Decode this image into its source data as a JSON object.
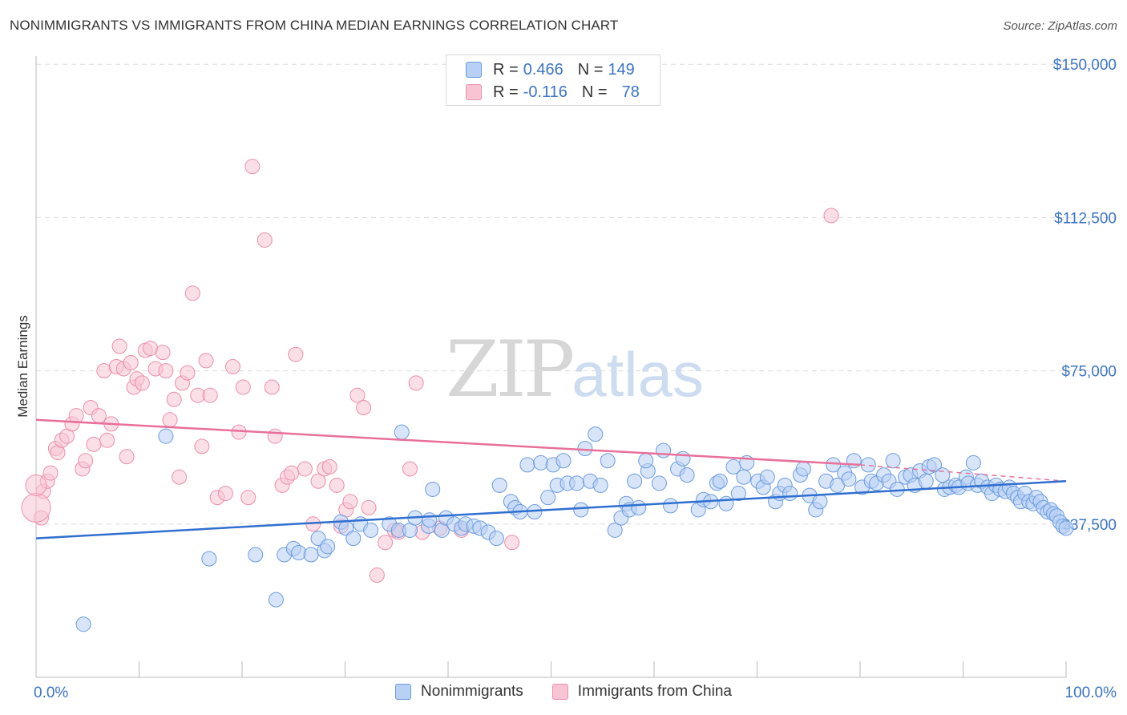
{
  "title": "NONIMMIGRANTS VS IMMIGRANTS FROM CHINA MEDIAN EARNINGS CORRELATION CHART",
  "source": "Source: ZipAtlas.com",
  "watermark": {
    "zip": "ZIP",
    "atlas": "atlas"
  },
  "legend": {
    "rows": [
      {
        "r_label": "R = ",
        "r_value": "0.466",
        "n_label": "N = ",
        "n_value": "149",
        "fill": "#b8d0f4",
        "stroke": "#6a9be0"
      },
      {
        "r_label": "R = ",
        "r_value": "-0.116",
        "n_label": "N = ",
        "n_value": "78",
        "fill": "#f8c4d4",
        "stroke": "#ec8eaa"
      }
    ]
  },
  "bottom_legend": [
    {
      "label": "Nonimmigrants",
      "fill": "#b8d0f4",
      "stroke": "#6a9be0"
    },
    {
      "label": "Immigrants from China",
      "fill": "#f8c4d4",
      "stroke": "#ec8eaa"
    }
  ],
  "chart_data": {
    "type": "scatter",
    "title": "NONIMMIGRANTS VS IMMIGRANTS FROM CHINA MEDIAN EARNINGS CORRELATION CHART",
    "xlabel": "",
    "ylabel": "Median Earnings",
    "xlim": [
      0,
      100
    ],
    "ylim": [
      0,
      152000
    ],
    "x_tick_labels": [
      "0.0%",
      "100.0%"
    ],
    "y_ticks": [
      37500,
      75000,
      112500,
      150000
    ],
    "y_tick_labels": [
      "$37,500",
      "$75,000",
      "$112,500",
      "$150,000"
    ],
    "grid": true,
    "series": [
      {
        "name": "Nonimmigrants",
        "color": "#6a9be0",
        "fill": "#b8d0f4",
        "trend": {
          "x": [
            0,
            100
          ],
          "y": [
            34000,
            48000
          ],
          "color": "#2f6fd0"
        },
        "points": [
          [
            4.6,
            13000
          ],
          [
            12.6,
            59000
          ],
          [
            16.8,
            29000
          ],
          [
            21.3,
            30000
          ],
          [
            23.3,
            19000
          ],
          [
            24.1,
            30000
          ],
          [
            25,
            31500
          ],
          [
            25.5,
            30500
          ],
          [
            26.7,
            30000
          ],
          [
            27.4,
            34000
          ],
          [
            28,
            31000
          ],
          [
            28.3,
            32000
          ],
          [
            29.6,
            38000
          ],
          [
            30.1,
            36500
          ],
          [
            30.8,
            34000
          ],
          [
            31.5,
            37500
          ],
          [
            32.5,
            36000
          ],
          [
            34.3,
            37500
          ],
          [
            35.2,
            36000
          ],
          [
            35.5,
            60000
          ],
          [
            36.3,
            36000
          ],
          [
            36.8,
            39000
          ],
          [
            38.1,
            37000
          ],
          [
            38.2,
            38500
          ],
          [
            38.5,
            46000
          ],
          [
            39.4,
            36000
          ],
          [
            39.8,
            39000
          ],
          [
            40.6,
            37500
          ],
          [
            41.3,
            36500
          ],
          [
            41.7,
            37500
          ],
          [
            42.5,
            37000
          ],
          [
            43.1,
            36500
          ],
          [
            43.9,
            35500
          ],
          [
            44.7,
            34000
          ],
          [
            45,
            47000
          ],
          [
            46.1,
            43000
          ],
          [
            46.5,
            41500
          ],
          [
            47,
            40500
          ],
          [
            47.7,
            52000
          ],
          [
            48.4,
            40500
          ],
          [
            49,
            52500
          ],
          [
            49.7,
            44000
          ],
          [
            50.2,
            52000
          ],
          [
            50.6,
            47000
          ],
          [
            51.2,
            53000
          ],
          [
            51.6,
            47500
          ],
          [
            52.5,
            47500
          ],
          [
            52.9,
            41000
          ],
          [
            53.3,
            56000
          ],
          [
            53.8,
            48000
          ],
          [
            54.3,
            59500
          ],
          [
            54.8,
            47000
          ],
          [
            55.5,
            53000
          ],
          [
            56.2,
            36000
          ],
          [
            56.8,
            39000
          ],
          [
            57.3,
            42500
          ],
          [
            57.6,
            41000
          ],
          [
            58.1,
            48000
          ],
          [
            58.5,
            41500
          ],
          [
            59.4,
            50500
          ],
          [
            59.2,
            53000
          ],
          [
            60.5,
            47500
          ],
          [
            60.9,
            55500
          ],
          [
            61.6,
            42000
          ],
          [
            62.3,
            51000
          ],
          [
            62.8,
            53500
          ],
          [
            63.2,
            49500
          ],
          [
            64.3,
            41000
          ],
          [
            64.8,
            43500
          ],
          [
            65.5,
            43000
          ],
          [
            66.1,
            47500
          ],
          [
            66.4,
            48000
          ],
          [
            67,
            42500
          ],
          [
            67.7,
            51500
          ],
          [
            68.2,
            45000
          ],
          [
            68.7,
            49000
          ],
          [
            69,
            52500
          ],
          [
            70.1,
            48000
          ],
          [
            70.6,
            46500
          ],
          [
            71,
            49000
          ],
          [
            71.8,
            43000
          ],
          [
            72.2,
            45000
          ],
          [
            72.7,
            47000
          ],
          [
            73.2,
            45000
          ],
          [
            74.2,
            49500
          ],
          [
            74.5,
            51000
          ],
          [
            75.1,
            44500
          ],
          [
            75.7,
            41000
          ],
          [
            76.1,
            43000
          ],
          [
            76.7,
            48000
          ],
          [
            77.4,
            52000
          ],
          [
            77.8,
            47000
          ],
          [
            78.5,
            50000
          ],
          [
            78.9,
            48500
          ],
          [
            79.4,
            53000
          ],
          [
            80.2,
            46500
          ],
          [
            80.8,
            52000
          ],
          [
            81.1,
            48000
          ],
          [
            81.6,
            47500
          ],
          [
            82.3,
            49500
          ],
          [
            82.8,
            48000
          ],
          [
            83.2,
            53000
          ],
          [
            83.6,
            46000
          ],
          [
            84.4,
            49000
          ],
          [
            84.9,
            49500
          ],
          [
            85.3,
            47000
          ],
          [
            85.8,
            50500
          ],
          [
            86.4,
            48000
          ],
          [
            86.7,
            51500
          ],
          [
            87.2,
            52000
          ],
          [
            88,
            49500
          ],
          [
            88.2,
            46000
          ],
          [
            88.7,
            46500
          ],
          [
            89.3,
            47000
          ],
          [
            89.6,
            46500
          ],
          [
            90.3,
            49000
          ],
          [
            90.5,
            47500
          ],
          [
            91,
            52500
          ],
          [
            91.4,
            47000
          ],
          [
            91.8,
            48000
          ],
          [
            92.4,
            46500
          ],
          [
            92.8,
            45000
          ],
          [
            93.2,
            47000
          ],
          [
            93.6,
            46000
          ],
          [
            94.1,
            45500
          ],
          [
            94.5,
            46500
          ],
          [
            94.9,
            45000
          ],
          [
            95.3,
            44000
          ],
          [
            95.6,
            43000
          ],
          [
            96,
            45000
          ],
          [
            96.4,
            43000
          ],
          [
            96.8,
            42500
          ],
          [
            97.1,
            44000
          ],
          [
            97.5,
            43000
          ],
          [
            97.8,
            41500
          ],
          [
            98.2,
            40500
          ],
          [
            98.5,
            41000
          ],
          [
            98.8,
            40000
          ],
          [
            99.1,
            39500
          ],
          [
            99.4,
            38000
          ],
          [
            99.7,
            37000
          ],
          [
            100,
            36500
          ]
        ]
      },
      {
        "name": "Immigrants from China",
        "color": "#ec8eaa",
        "fill": "#f8c4d4",
        "trend": {
          "x": [
            0,
            80
          ],
          "y": [
            63000,
            52000
          ],
          "color": "#e8709a"
        },
        "trend_dashed": {
          "x": [
            80,
            100
          ],
          "y": [
            52000,
            48000
          ]
        },
        "points": [
          [
            0.5,
            39000
          ],
          [
            0.7,
            45500
          ],
          [
            1.1,
            48000
          ],
          [
            1.4,
            50000
          ],
          [
            1.9,
            56000
          ],
          [
            2.1,
            55000
          ],
          [
            2.5,
            58000
          ],
          [
            3,
            59000
          ],
          [
            3.5,
            62000
          ],
          [
            3.9,
            64000
          ],
          [
            4.5,
            51000
          ],
          [
            4.8,
            53000
          ],
          [
            5.3,
            66000
          ],
          [
            5.6,
            57000
          ],
          [
            6.1,
            64000
          ],
          [
            6.6,
            75000
          ],
          [
            6.9,
            58000
          ],
          [
            7.3,
            62000
          ],
          [
            7.8,
            76000
          ],
          [
            8.1,
            81000
          ],
          [
            8.5,
            75500
          ],
          [
            8.8,
            54000
          ],
          [
            9.2,
            77000
          ],
          [
            9.5,
            71000
          ],
          [
            9.8,
            73000
          ],
          [
            10.3,
            72000
          ],
          [
            10.6,
            80000
          ],
          [
            11.1,
            80500
          ],
          [
            11.6,
            75500
          ],
          [
            12.3,
            79500
          ],
          [
            12.6,
            75000
          ],
          [
            13,
            63000
          ],
          [
            13.4,
            68000
          ],
          [
            13.9,
            49000
          ],
          [
            14.2,
            72000
          ],
          [
            14.7,
            74500
          ],
          [
            15.2,
            94000
          ],
          [
            15.7,
            69000
          ],
          [
            16.1,
            56500
          ],
          [
            16.5,
            77500
          ],
          [
            16.9,
            69000
          ],
          [
            17.6,
            44000
          ],
          [
            18.4,
            45000
          ],
          [
            19.1,
            76000
          ],
          [
            19.7,
            60000
          ],
          [
            20.1,
            71000
          ],
          [
            20.6,
            44000
          ],
          [
            21,
            125000
          ],
          [
            22.2,
            107000
          ],
          [
            22.9,
            71000
          ],
          [
            23.2,
            59000
          ],
          [
            23.9,
            47000
          ],
          [
            24.4,
            49000
          ],
          [
            24.8,
            50000
          ],
          [
            25.2,
            79000
          ],
          [
            26.1,
            51000
          ],
          [
            26.9,
            37500
          ],
          [
            27.4,
            48000
          ],
          [
            28,
            51000
          ],
          [
            28.5,
            51500
          ],
          [
            29.2,
            47000
          ],
          [
            29.6,
            37000
          ],
          [
            30.1,
            41000
          ],
          [
            30.5,
            43000
          ],
          [
            31.2,
            69000
          ],
          [
            31.8,
            66000
          ],
          [
            32.3,
            41500
          ],
          [
            33.1,
            25000
          ],
          [
            33.9,
            33000
          ],
          [
            34.8,
            36000
          ],
          [
            35.2,
            35500
          ],
          [
            36.3,
            51000
          ],
          [
            36.9,
            72000
          ],
          [
            37.5,
            35500
          ],
          [
            39.2,
            36500
          ],
          [
            41.3,
            36000
          ],
          [
            46.2,
            33000
          ],
          [
            77.2,
            113000
          ]
        ],
        "sizes": {
          "large": [
            [
              0,
              41500
            ],
            [
              0,
              47000
            ]
          ]
        }
      }
    ]
  }
}
